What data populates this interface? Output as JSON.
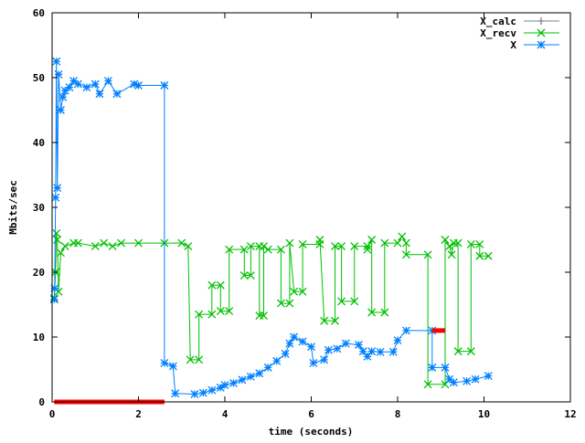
{
  "chart_data": {
    "type": "line",
    "title": "",
    "xlabel": "time (seconds)",
    "ylabel": "Mbits/sec",
    "xlim": [
      0,
      12
    ],
    "ylim": [
      0,
      60
    ],
    "xticks": [
      0,
      2,
      4,
      6,
      8,
      10,
      12
    ],
    "yticks": [
      0,
      10,
      20,
      30,
      40,
      50,
      60
    ],
    "grid": false,
    "legend_position": "top-right",
    "series": [
      {
        "name": "X_calc",
        "color": "#ff0000",
        "marker": "plus",
        "points": [
          [
            0.05,
            0
          ],
          [
            2.6,
            0
          ],
          null,
          [
            8.8,
            11
          ],
          [
            9.1,
            11
          ]
        ]
      },
      {
        "name": "X_recv",
        "color": "#00c000",
        "marker": "cross",
        "points": [
          [
            0.05,
            16
          ],
          [
            0.08,
            20
          ],
          [
            0.1,
            26
          ],
          [
            0.12,
            25
          ],
          [
            0.15,
            17
          ],
          [
            0.2,
            23
          ],
          [
            0.3,
            24
          ],
          [
            0.5,
            24.5
          ],
          [
            0.6,
            24.5
          ],
          [
            1.0,
            24
          ],
          [
            1.2,
            24.5
          ],
          [
            1.4,
            24
          ],
          [
            1.6,
            24.5
          ],
          [
            2.0,
            24.5
          ],
          [
            2.6,
            24.5
          ],
          [
            3.0,
            24.5
          ],
          [
            3.15,
            24
          ],
          [
            3.2,
            6.5
          ],
          [
            3.4,
            6.5
          ],
          [
            3.4,
            13.5
          ],
          [
            3.7,
            13.5
          ],
          [
            3.7,
            18
          ],
          [
            3.9,
            18
          ],
          [
            3.9,
            14
          ],
          [
            4.1,
            14
          ],
          [
            4.1,
            23.5
          ],
          [
            4.45,
            23.5
          ],
          [
            4.45,
            19.5
          ],
          [
            4.6,
            19.5
          ],
          [
            4.6,
            24
          ],
          [
            4.8,
            24
          ],
          [
            4.8,
            13.3
          ],
          [
            4.9,
            13.3
          ],
          [
            4.9,
            24
          ],
          [
            5.0,
            23.5
          ],
          [
            5.3,
            23.5
          ],
          [
            5.3,
            15.2
          ],
          [
            5.5,
            15.2
          ],
          [
            5.5,
            24.5
          ],
          [
            5.6,
            17
          ],
          [
            5.8,
            17
          ],
          [
            5.8,
            24.3
          ],
          [
            6.2,
            24.3
          ],
          [
            6.2,
            25
          ],
          [
            6.3,
            12.5
          ],
          [
            6.55,
            12.5
          ],
          [
            6.55,
            24
          ],
          [
            6.7,
            24
          ],
          [
            6.7,
            15.5
          ],
          [
            7.0,
            15.5
          ],
          [
            7.0,
            24
          ],
          [
            7.3,
            24
          ],
          [
            7.3,
            23.5
          ],
          [
            7.4,
            25
          ],
          [
            7.4,
            13.8
          ],
          [
            7.7,
            13.8
          ],
          [
            7.7,
            24.5
          ],
          [
            8.0,
            24.5
          ],
          [
            8.1,
            25.5
          ],
          [
            8.2,
            24.5
          ],
          [
            8.2,
            22.7
          ],
          [
            8.7,
            22.7
          ],
          [
            8.7,
            2.7
          ],
          [
            9.1,
            2.7
          ],
          [
            9.1,
            25
          ],
          [
            9.2,
            24
          ],
          [
            9.25,
            22.7
          ],
          [
            9.3,
            24.5
          ],
          [
            9.4,
            24.5
          ],
          [
            9.4,
            7.8
          ],
          [
            9.7,
            7.8
          ],
          [
            9.7,
            24.3
          ],
          [
            9.9,
            24.3
          ],
          [
            9.9,
            22.5
          ],
          [
            10.1,
            22.5
          ]
        ]
      },
      {
        "name": "X",
        "color": "#0080ff",
        "marker": "star",
        "points": [
          [
            0.05,
            15.8
          ],
          [
            0.06,
            17.5
          ],
          [
            0.08,
            31.5
          ],
          [
            0.1,
            52.5
          ],
          [
            0.12,
            33
          ],
          [
            0.15,
            50.5
          ],
          [
            0.2,
            45
          ],
          [
            0.25,
            47
          ],
          [
            0.3,
            48
          ],
          [
            0.4,
            48.5
          ],
          [
            0.5,
            49.5
          ],
          [
            0.6,
            49
          ],
          [
            0.8,
            48.5
          ],
          [
            1.0,
            49
          ],
          [
            1.1,
            47.5
          ],
          [
            1.3,
            49.5
          ],
          [
            1.5,
            47.5
          ],
          [
            1.9,
            49
          ],
          [
            2.0,
            48.8
          ],
          [
            2.6,
            48.8
          ],
          [
            2.6,
            6
          ],
          [
            2.8,
            5.5
          ],
          [
            2.85,
            1.3
          ],
          [
            3.3,
            1.2
          ],
          [
            3.5,
            1.4
          ],
          [
            3.7,
            1.8
          ],
          [
            3.9,
            2.2
          ],
          [
            4.0,
            2.6
          ],
          [
            4.2,
            2.9
          ],
          [
            4.4,
            3.4
          ],
          [
            4.6,
            3.9
          ],
          [
            4.8,
            4.4
          ],
          [
            5.0,
            5.3
          ],
          [
            5.2,
            6.3
          ],
          [
            5.4,
            7.4
          ],
          [
            5.5,
            9
          ],
          [
            5.6,
            10
          ],
          [
            5.8,
            9.3
          ],
          [
            6.0,
            8.5
          ],
          [
            6.05,
            6
          ],
          [
            6.3,
            6.5
          ],
          [
            6.4,
            8
          ],
          [
            6.6,
            8.2
          ],
          [
            6.8,
            9
          ],
          [
            7.1,
            8.8
          ],
          [
            7.2,
            7.8
          ],
          [
            7.3,
            7
          ],
          [
            7.4,
            7.8
          ],
          [
            7.6,
            7.7
          ],
          [
            7.9,
            7.7
          ],
          [
            8.0,
            9.5
          ],
          [
            8.2,
            11
          ],
          [
            8.8,
            11
          ],
          [
            8.8,
            5.3
          ],
          [
            9.1,
            5.3
          ],
          [
            9.2,
            3.5
          ],
          [
            9.3,
            3
          ],
          [
            9.6,
            3.2
          ],
          [
            9.8,
            3.5
          ],
          [
            10.1,
            4
          ]
        ]
      }
    ]
  }
}
